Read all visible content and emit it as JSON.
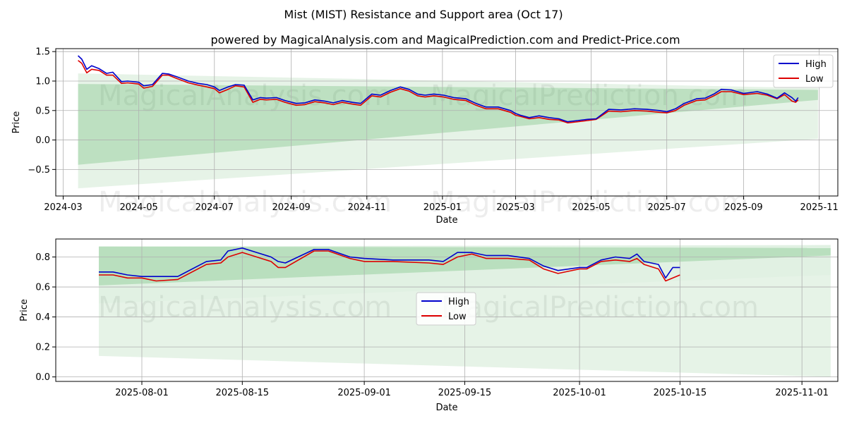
{
  "title": "Mist (MIST) Resistance and Support area (Oct 17)",
  "subtitle": "powered by MagicalAnalysis.com and MagicalPrediction.com and Predict-Price.com",
  "watermarks": [
    "MagicalAnalysis.com",
    "MagicalPrediction.com"
  ],
  "colors": {
    "high": "#0000cc",
    "low": "#dd0000",
    "band": "#2e9e3a",
    "grid": "#b0b0b0"
  },
  "chart_data": [
    {
      "type": "line",
      "name": "full-history",
      "xlabel": "Date",
      "ylabel": "Price",
      "xlim": [
        "2024-02-24",
        "2025-11-16"
      ],
      "ylim": [
        -0.95,
        1.55
      ],
      "xticks": [
        {
          "date": "2024-03-01",
          "label": "2024-03"
        },
        {
          "date": "2024-05-01",
          "label": "2024-05"
        },
        {
          "date": "2024-07-01",
          "label": "2024-07"
        },
        {
          "date": "2024-09-01",
          "label": "2024-09"
        },
        {
          "date": "2024-11-01",
          "label": "2024-11"
        },
        {
          "date": "2025-01-01",
          "label": "2025-01"
        },
        {
          "date": "2025-03-01",
          "label": "2025-03"
        },
        {
          "date": "2025-05-01",
          "label": "2025-05"
        },
        {
          "date": "2025-07-01",
          "label": "2025-07"
        },
        {
          "date": "2025-09-01",
          "label": "2025-09"
        },
        {
          "date": "2025-11-01",
          "label": "2025-11"
        }
      ],
      "yticks": [
        {
          "value": 1.5,
          "label": "1.5"
        },
        {
          "value": 1.0,
          "label": "1.0"
        },
        {
          "value": 0.5,
          "label": "0.5"
        },
        {
          "value": 0.0,
          "label": "0.0"
        },
        {
          "value": -0.5,
          "label": "−0.5"
        }
      ],
      "grid": true,
      "legend": {
        "position": "top-right",
        "entries": [
          "High",
          "Low"
        ]
      },
      "bands": [
        {
          "x": [
            "2024-03-13",
            "2025-10-31"
          ],
          "upper": [
            0.95,
            0.85
          ],
          "lower": [
            -0.42,
            0.68
          ],
          "opacity": 0.22
        },
        {
          "x": [
            "2024-03-13",
            "2025-10-31"
          ],
          "upper": [
            1.13,
            0.88
          ],
          "lower": [
            -0.82,
            0.02
          ],
          "opacity": 0.12
        }
      ],
      "series": [
        {
          "name": "High",
          "x": [
            "2024-03-13",
            "2024-03-16",
            "2024-03-20",
            "2024-03-24",
            "2024-03-30",
            "2024-04-05",
            "2024-04-10",
            "2024-04-17",
            "2024-04-22",
            "2024-05-01",
            "2024-05-05",
            "2024-05-12",
            "2024-05-20",
            "2024-05-25",
            "2024-06-01",
            "2024-06-10",
            "2024-06-18",
            "2024-06-25",
            "2024-07-01",
            "2024-07-05",
            "2024-07-12",
            "2024-07-18",
            "2024-07-25",
            "2024-08-01",
            "2024-08-07",
            "2024-08-12",
            "2024-08-20",
            "2024-08-27",
            "2024-09-05",
            "2024-09-12",
            "2024-09-20",
            "2024-09-28",
            "2024-10-05",
            "2024-10-12",
            "2024-10-20",
            "2024-10-27",
            "2024-11-05",
            "2024-11-12",
            "2024-11-20",
            "2024-11-28",
            "2024-12-05",
            "2024-12-12",
            "2024-12-18",
            "2024-12-25",
            "2025-01-02",
            "2025-01-10",
            "2025-01-20",
            "2025-01-28",
            "2025-02-05",
            "2025-02-15",
            "2025-02-25",
            "2025-03-01",
            "2025-03-05",
            "2025-03-12",
            "2025-03-20",
            "2025-03-28",
            "2025-04-05",
            "2025-04-12",
            "2025-04-20",
            "2025-04-28",
            "2025-05-05",
            "2025-05-15",
            "2025-05-25",
            "2025-06-05",
            "2025-06-15",
            "2025-06-25",
            "2025-07-01",
            "2025-07-08",
            "2025-07-15",
            "2025-07-25",
            "2025-08-01",
            "2025-08-08",
            "2025-08-14",
            "2025-08-22",
            "2025-09-01",
            "2025-09-12",
            "2025-09-20",
            "2025-09-28",
            "2025-10-04",
            "2025-10-10",
            "2025-10-13",
            "2025-10-15"
          ],
          "values": [
            1.43,
            1.37,
            1.2,
            1.26,
            1.21,
            1.13,
            1.15,
            0.99,
            1.0,
            0.98,
            0.92,
            0.94,
            1.13,
            1.12,
            1.07,
            1.0,
            0.96,
            0.94,
            0.9,
            0.84,
            0.9,
            0.94,
            0.93,
            0.68,
            0.72,
            0.71,
            0.72,
            0.67,
            0.62,
            0.63,
            0.68,
            0.66,
            0.63,
            0.67,
            0.64,
            0.62,
            0.78,
            0.76,
            0.84,
            0.9,
            0.86,
            0.78,
            0.76,
            0.78,
            0.76,
            0.72,
            0.7,
            0.62,
            0.56,
            0.56,
            0.5,
            0.45,
            0.42,
            0.38,
            0.41,
            0.38,
            0.36,
            0.31,
            0.33,
            0.35,
            0.36,
            0.52,
            0.51,
            0.53,
            0.52,
            0.5,
            0.48,
            0.53,
            0.62,
            0.7,
            0.71,
            0.78,
            0.86,
            0.85,
            0.79,
            0.82,
            0.78,
            0.71,
            0.8,
            0.72,
            0.66,
            0.72
          ]
        },
        {
          "name": "Low",
          "x": [
            "2024-03-13",
            "2024-03-16",
            "2024-03-20",
            "2024-03-24",
            "2024-03-30",
            "2024-04-05",
            "2024-04-10",
            "2024-04-17",
            "2024-04-22",
            "2024-05-01",
            "2024-05-05",
            "2024-05-12",
            "2024-05-20",
            "2024-05-25",
            "2024-06-01",
            "2024-06-10",
            "2024-06-18",
            "2024-06-25",
            "2024-07-01",
            "2024-07-05",
            "2024-07-12",
            "2024-07-18",
            "2024-07-25",
            "2024-08-01",
            "2024-08-07",
            "2024-08-12",
            "2024-08-20",
            "2024-08-27",
            "2024-09-05",
            "2024-09-12",
            "2024-09-20",
            "2024-09-28",
            "2024-10-05",
            "2024-10-12",
            "2024-10-20",
            "2024-10-27",
            "2024-11-05",
            "2024-11-12",
            "2024-11-20",
            "2024-11-28",
            "2024-12-05",
            "2024-12-12",
            "2024-12-18",
            "2024-12-25",
            "2025-01-02",
            "2025-01-10",
            "2025-01-20",
            "2025-01-28",
            "2025-02-05",
            "2025-02-15",
            "2025-02-25",
            "2025-03-01",
            "2025-03-05",
            "2025-03-12",
            "2025-03-20",
            "2025-03-28",
            "2025-04-05",
            "2025-04-12",
            "2025-04-20",
            "2025-04-28",
            "2025-05-05",
            "2025-05-15",
            "2025-05-25",
            "2025-06-05",
            "2025-06-15",
            "2025-06-25",
            "2025-07-01",
            "2025-07-08",
            "2025-07-15",
            "2025-07-25",
            "2025-08-01",
            "2025-08-08",
            "2025-08-14",
            "2025-08-22",
            "2025-09-01",
            "2025-09-12",
            "2025-09-20",
            "2025-09-28",
            "2025-10-04",
            "2025-10-10",
            "2025-10-13",
            "2025-10-15"
          ],
          "values": [
            1.35,
            1.3,
            1.14,
            1.2,
            1.18,
            1.1,
            1.1,
            0.96,
            0.97,
            0.95,
            0.88,
            0.91,
            1.1,
            1.1,
            1.04,
            0.97,
            0.93,
            0.9,
            0.87,
            0.8,
            0.86,
            0.92,
            0.9,
            0.64,
            0.69,
            0.68,
            0.69,
            0.64,
            0.59,
            0.6,
            0.65,
            0.63,
            0.6,
            0.64,
            0.61,
            0.59,
            0.75,
            0.73,
            0.81,
            0.87,
            0.83,
            0.75,
            0.73,
            0.75,
            0.73,
            0.69,
            0.67,
            0.59,
            0.53,
            0.53,
            0.47,
            0.42,
            0.4,
            0.36,
            0.38,
            0.35,
            0.34,
            0.29,
            0.31,
            0.33,
            0.35,
            0.49,
            0.48,
            0.5,
            0.49,
            0.47,
            0.46,
            0.5,
            0.59,
            0.67,
            0.68,
            0.75,
            0.82,
            0.82,
            0.77,
            0.79,
            0.76,
            0.7,
            0.77,
            0.66,
            0.64,
            0.68
          ]
        }
      ]
    },
    {
      "type": "line",
      "name": "recent-zoom",
      "xlabel": "Date",
      "ylabel": "Price",
      "xlim": [
        "2025-07-20",
        "2025-11-06"
      ],
      "ylim": [
        -0.03,
        0.92
      ],
      "xticks": [
        {
          "date": "2025-08-01",
          "label": "2025-08-01"
        },
        {
          "date": "2025-08-15",
          "label": "2025-08-15"
        },
        {
          "date": "2025-09-01",
          "label": "2025-09-01"
        },
        {
          "date": "2025-09-15",
          "label": "2025-09-15"
        },
        {
          "date": "2025-10-01",
          "label": "2025-10-01"
        },
        {
          "date": "2025-10-15",
          "label": "2025-10-15"
        },
        {
          "date": "2025-11-01",
          "label": "2025-11-01"
        }
      ],
      "yticks": [
        {
          "value": 0.8,
          "label": "0.8"
        },
        {
          "value": 0.6,
          "label": "0.6"
        },
        {
          "value": 0.4,
          "label": "0.4"
        },
        {
          "value": 0.2,
          "label": "0.2"
        },
        {
          "value": 0.0,
          "label": "0.0"
        }
      ],
      "grid": true,
      "legend": {
        "position": "center",
        "entries": [
          "High",
          "Low"
        ]
      },
      "bands": [
        {
          "x": [
            "2025-07-26",
            "2025-11-05"
          ],
          "upper": [
            0.87,
            0.86
          ],
          "lower": [
            0.61,
            0.81
          ],
          "opacity": 0.22
        },
        {
          "x": [
            "2025-07-26",
            "2025-11-05"
          ],
          "upper": [
            0.87,
            0.88
          ],
          "lower": [
            0.49,
            0.68
          ],
          "opacity": 0.14
        },
        {
          "x": [
            "2025-07-26",
            "2025-11-05"
          ],
          "upper": [
            0.49,
            0.68
          ],
          "lower": [
            0.14,
            0.0
          ],
          "opacity": 0.12
        }
      ],
      "series": [
        {
          "name": "High",
          "x": [
            "2025-07-26",
            "2025-07-28",
            "2025-07-30",
            "2025-08-01",
            "2025-08-03",
            "2025-08-06",
            "2025-08-10",
            "2025-08-12",
            "2025-08-13",
            "2025-08-15",
            "2025-08-17",
            "2025-08-19",
            "2025-08-20",
            "2025-08-21",
            "2025-08-25",
            "2025-08-27",
            "2025-08-30",
            "2025-09-01",
            "2025-09-05",
            "2025-09-10",
            "2025-09-12",
            "2025-09-14",
            "2025-09-16",
            "2025-09-18",
            "2025-09-21",
            "2025-09-24",
            "2025-09-26",
            "2025-09-28",
            "2025-10-01",
            "2025-10-02",
            "2025-10-04",
            "2025-10-06",
            "2025-10-08",
            "2025-10-09",
            "2025-10-10",
            "2025-10-12",
            "2025-10-13",
            "2025-10-14",
            "2025-10-15"
          ],
          "values": [
            0.7,
            0.7,
            0.68,
            0.67,
            0.67,
            0.67,
            0.77,
            0.78,
            0.84,
            0.86,
            0.83,
            0.8,
            0.77,
            0.76,
            0.85,
            0.85,
            0.8,
            0.79,
            0.78,
            0.78,
            0.77,
            0.83,
            0.83,
            0.81,
            0.81,
            0.79,
            0.74,
            0.71,
            0.73,
            0.73,
            0.78,
            0.8,
            0.79,
            0.82,
            0.77,
            0.75,
            0.66,
            0.73,
            0.73
          ]
        },
        {
          "name": "Low",
          "x": [
            "2025-07-26",
            "2025-07-28",
            "2025-07-30",
            "2025-08-01",
            "2025-08-03",
            "2025-08-06",
            "2025-08-10",
            "2025-08-12",
            "2025-08-13",
            "2025-08-15",
            "2025-08-17",
            "2025-08-19",
            "2025-08-20",
            "2025-08-21",
            "2025-08-25",
            "2025-08-27",
            "2025-08-30",
            "2025-09-01",
            "2025-09-05",
            "2025-09-10",
            "2025-09-12",
            "2025-09-14",
            "2025-09-16",
            "2025-09-18",
            "2025-09-21",
            "2025-09-24",
            "2025-09-26",
            "2025-09-28",
            "2025-10-01",
            "2025-10-02",
            "2025-10-04",
            "2025-10-06",
            "2025-10-08",
            "2025-10-09",
            "2025-10-10",
            "2025-10-12",
            "2025-10-13",
            "2025-10-14",
            "2025-10-15"
          ],
          "values": [
            0.68,
            0.68,
            0.66,
            0.66,
            0.64,
            0.65,
            0.75,
            0.76,
            0.8,
            0.83,
            0.8,
            0.77,
            0.73,
            0.73,
            0.84,
            0.84,
            0.79,
            0.77,
            0.77,
            0.76,
            0.75,
            0.8,
            0.82,
            0.79,
            0.79,
            0.78,
            0.72,
            0.69,
            0.72,
            0.72,
            0.77,
            0.78,
            0.77,
            0.79,
            0.75,
            0.72,
            0.64,
            0.66,
            0.68
          ]
        }
      ]
    }
  ]
}
